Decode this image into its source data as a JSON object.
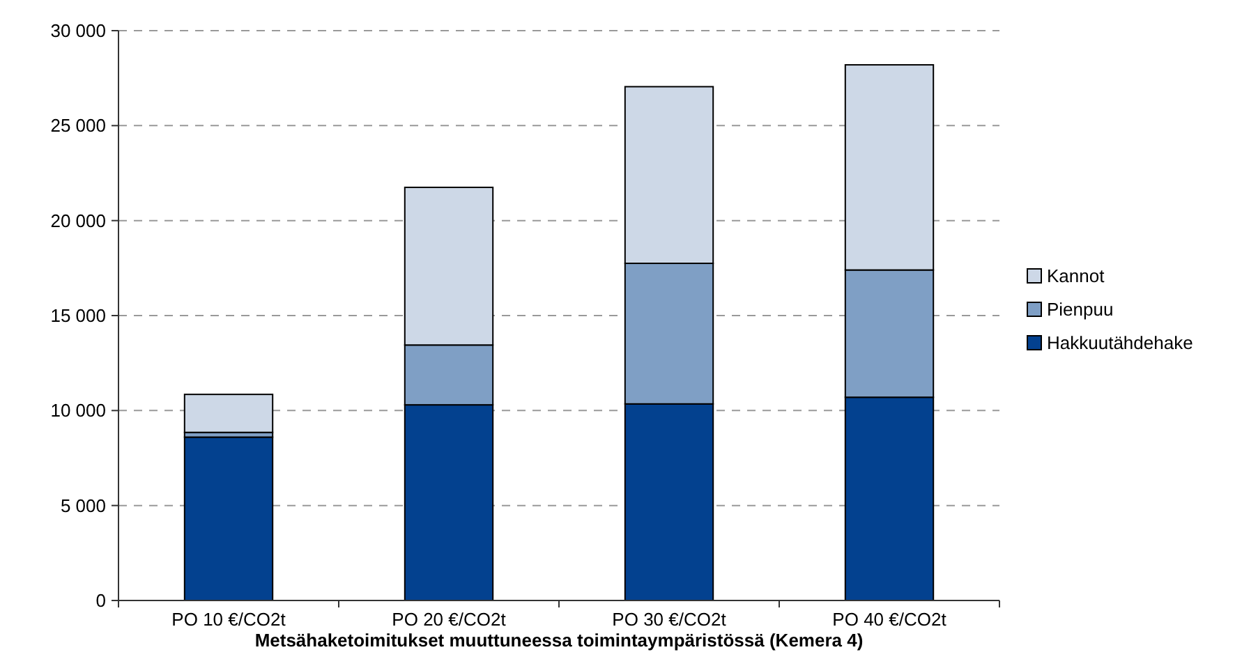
{
  "chart_data": {
    "type": "bar",
    "stacked": true,
    "xlabel": "Metsähaketoimitukset muuttuneessa toimintaympäristössä (Kemera 4)",
    "categories": [
      "PO 10 €/CO2t",
      "PO 20 €/CO2t",
      "PO 30 €/CO2t",
      "PO 40 €/CO2t"
    ],
    "series": [
      {
        "name": "Hakkuutähdehake",
        "color": "#03418f",
        "values": [
          8600,
          10300,
          10350,
          10700
        ]
      },
      {
        "name": "Pienpuu",
        "color": "#7f9fc5",
        "values": [
          250,
          3150,
          7400,
          6700
        ]
      },
      {
        "name": "Kannot",
        "color": "#cdd8e7",
        "values": [
          2000,
          8300,
          9300,
          10800
        ]
      }
    ],
    "ylim": [
      0,
      30000
    ],
    "yticks": [
      {
        "value": 0,
        "label": "0"
      },
      {
        "value": 5000,
        "label": "5 000"
      },
      {
        "value": 10000,
        "label": "10 000"
      },
      {
        "value": 15000,
        "label": "15 000"
      },
      {
        "value": 20000,
        "label": "20 000"
      },
      {
        "value": 25000,
        "label": "25 000"
      },
      {
        "value": 30000,
        "label": "30 000"
      }
    ],
    "grid": "y",
    "legend": "right"
  }
}
